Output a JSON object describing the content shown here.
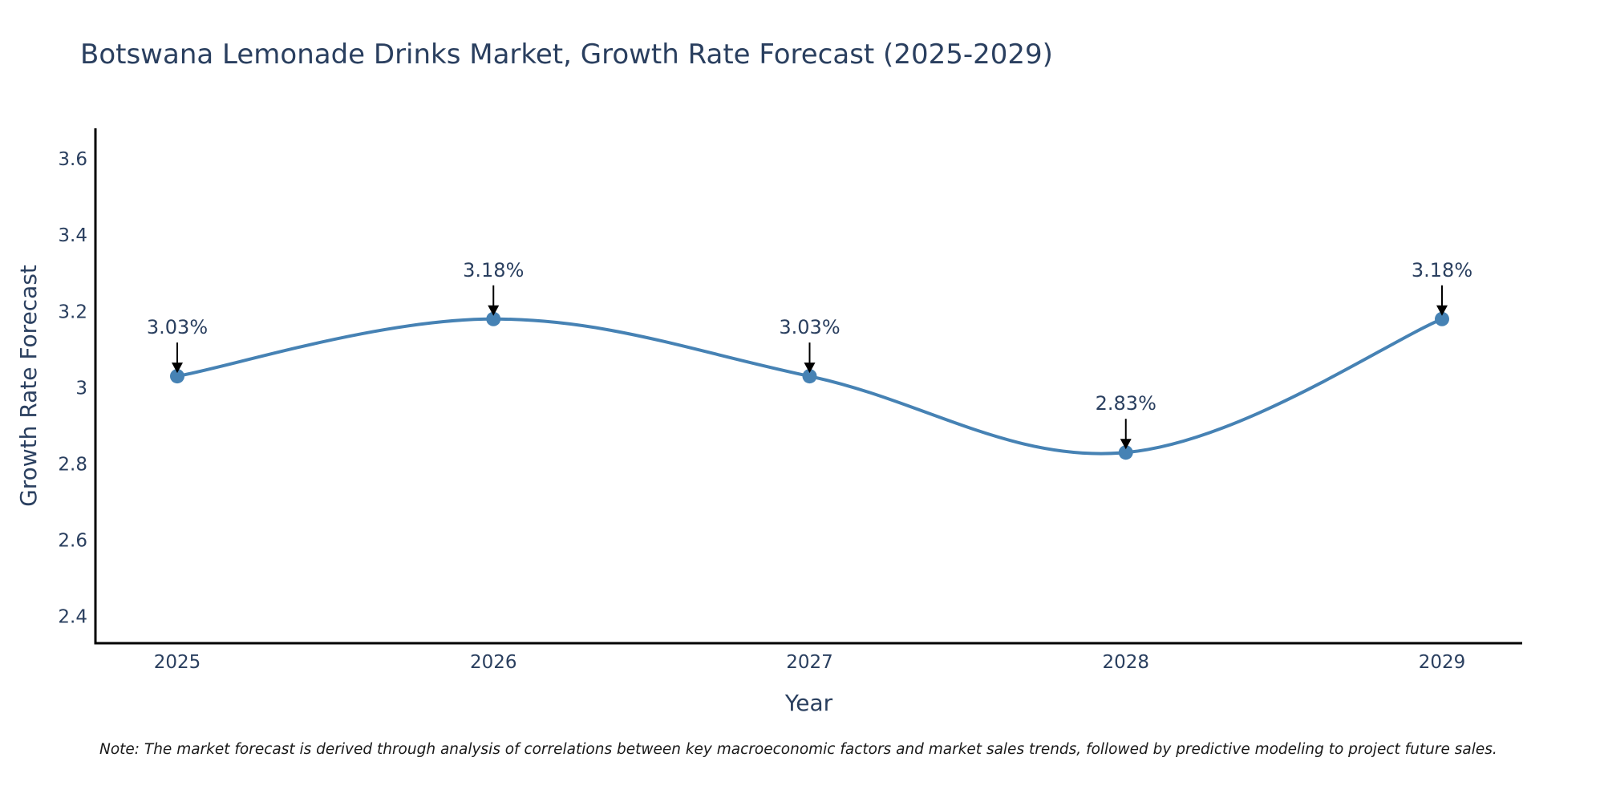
{
  "chart_data": {
    "type": "line",
    "title": "Botswana Lemonade Drinks Market, Growth Rate Forecast (2025-2029)",
    "xlabel": "Year",
    "ylabel": "Growth Rate Forecast",
    "categories": [
      "2025",
      "2026",
      "2027",
      "2028",
      "2029"
    ],
    "series": [
      {
        "name": "Growth Rate Forecast",
        "values": [
          3.03,
          3.18,
          3.03,
          2.83,
          3.18
        ],
        "color": "#4682b4"
      }
    ],
    "annotations": [
      "3.03%",
      "3.18%",
      "3.03%",
      "2.83%",
      "3.18%"
    ],
    "ylim": [
      2.33,
      3.68
    ],
    "yticks": [
      2.4,
      2.6,
      2.8,
      3,
      3.2,
      3.4,
      3.6
    ],
    "ytick_labels": [
      "2.4",
      "2.6",
      "2.8",
      "3",
      "3.2",
      "3.4",
      "3.6"
    ],
    "grid": false,
    "note": "Note: The market forecast is derived through analysis of correlations between key macroeconomic factors and market sales trends, followed by predictive modeling to project future sales."
  }
}
